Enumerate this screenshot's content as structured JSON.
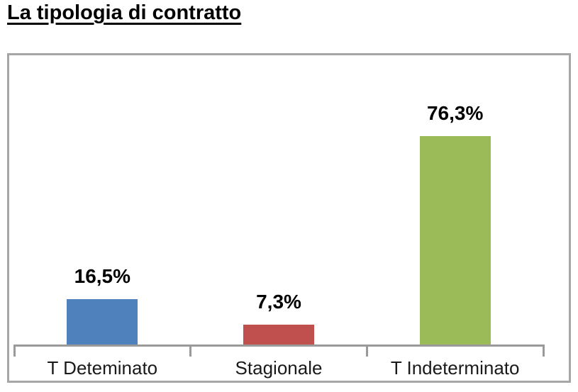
{
  "title": "La tipologia di contratto",
  "chart_data": {
    "type": "bar",
    "title": "La tipologia di contratto",
    "categories": [
      "T Deteminato",
      "Stagionale",
      "T Indeterminato"
    ],
    "values": [
      16.5,
      7.3,
      76.3
    ],
    "data_labels": [
      "16,5%",
      "7,3%",
      "76,3%"
    ],
    "series": [
      {
        "name": "Tipologia di contratto",
        "values": [
          16.5,
          7.3,
          76.3
        ]
      }
    ],
    "bar_colors": [
      "#4F81BD",
      "#C0504D",
      "#9BBB59"
    ],
    "xlabel": "",
    "ylabel": "",
    "ylim": [
      0,
      100
    ],
    "grid": false,
    "legend": false,
    "frame_color": "#A6A6A6",
    "axis_color": "#9A9A9A",
    "label_color": "#000000"
  }
}
